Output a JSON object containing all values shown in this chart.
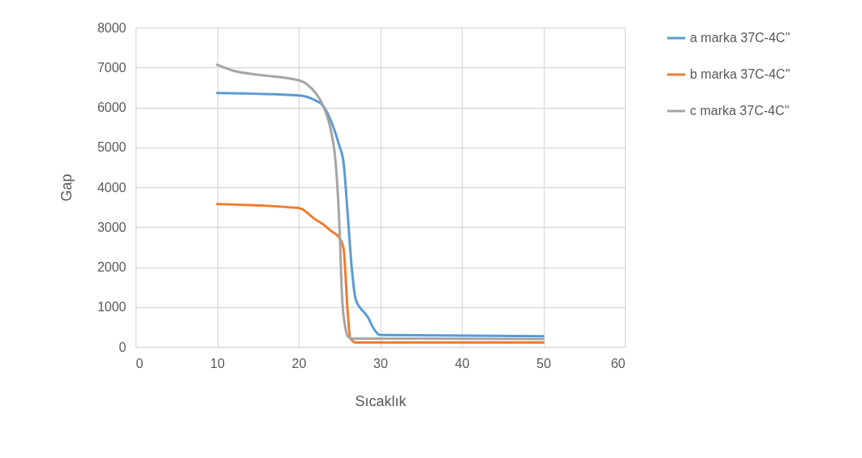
{
  "chart_data": {
    "type": "line",
    "xlabel": "Sıcaklık",
    "ylabel": "Gap",
    "xlim": [
      0,
      60
    ],
    "xticks": [
      0,
      10,
      20,
      30,
      40,
      50,
      60
    ],
    "ylim": [
      0,
      8000
    ],
    "yticks": [
      0,
      1000,
      2000,
      3000,
      4000,
      5000,
      6000,
      7000,
      8000
    ],
    "grid": true,
    "legend": "right",
    "marker": "none",
    "line_style": "solid",
    "series": [
      {
        "name": "a marka 37C-4C''",
        "color": "#5b9bd5",
        "x": [
          10,
          20,
          22,
          23,
          24,
          25,
          25.5,
          26,
          26.5,
          27,
          28,
          28.5,
          29,
          29.5,
          30,
          50
        ],
        "values": [
          6360,
          6300,
          6180,
          6040,
          5640,
          5030,
          4620,
          3340,
          1990,
          1180,
          870,
          740,
          530,
          370,
          300,
          270
        ]
      },
      {
        "name": "b marka 37C-4C''",
        "color": "#ed7d31",
        "x": [
          10,
          20,
          22,
          23,
          24,
          25,
          25.5,
          26,
          26.3,
          27,
          50
        ],
        "values": [
          3580,
          3480,
          3200,
          3070,
          2900,
          2730,
          2460,
          900,
          230,
          110,
          110
        ]
      },
      {
        "name": "c marka 37C-4C''",
        "color": "#a5a5a5",
        "x": [
          10,
          12,
          15,
          20,
          21,
          22,
          23,
          24,
          24.5,
          25,
          25.3,
          25.7,
          26,
          26.5,
          50
        ],
        "values": [
          7070,
          6920,
          6820,
          6680,
          6580,
          6380,
          6040,
          5370,
          4690,
          3000,
          1310,
          500,
          270,
          210,
          200
        ]
      }
    ]
  }
}
